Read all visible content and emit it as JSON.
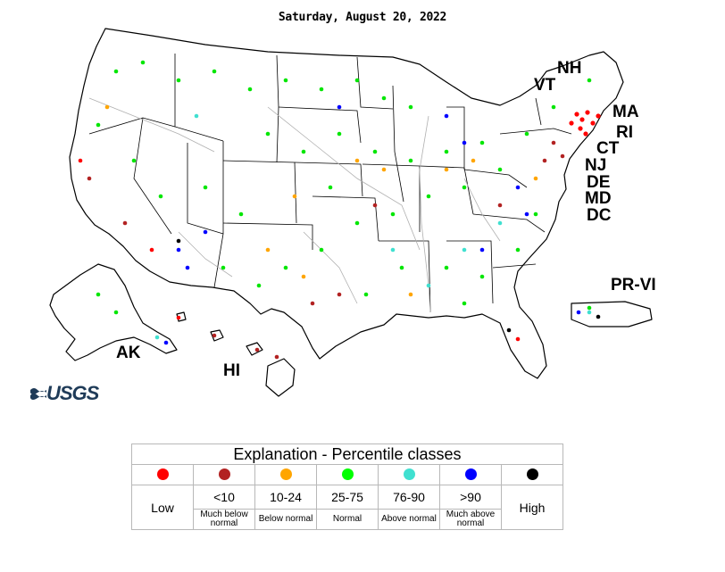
{
  "title": "Saturday, August 20, 2022",
  "logo_text": "USGS",
  "state_labels": {
    "nh": "NH",
    "vt": "VT",
    "ma": "MA",
    "ri": "RI",
    "ct": "CT",
    "nj": "NJ",
    "de": "DE",
    "md": "MD",
    "dc": "DC",
    "prvi": "PR-VI",
    "ak": "AK",
    "hi": "HI"
  },
  "legend": {
    "title": "Explanation - Percentile classes",
    "classes": [
      {
        "id": "low",
        "color": "#ff0000",
        "range": "Low",
        "desc": ""
      },
      {
        "id": "much_below",
        "color": "#b22222",
        "range": "<10",
        "desc": "Much below normal"
      },
      {
        "id": "below",
        "color": "#ffa500",
        "range": "10-24",
        "desc": "Below normal"
      },
      {
        "id": "normal",
        "color": "#00ff00",
        "range": "25-75",
        "desc": "Normal"
      },
      {
        "id": "above",
        "color": "#40e0d0",
        "range": "76-90",
        "desc": "Above normal"
      },
      {
        "id": "much_above",
        "color": "#0000ff",
        "range": ">90",
        "desc": "Much above normal"
      },
      {
        "id": "high",
        "color": "#000000",
        "range": "High",
        "desc": ""
      }
    ]
  }
}
